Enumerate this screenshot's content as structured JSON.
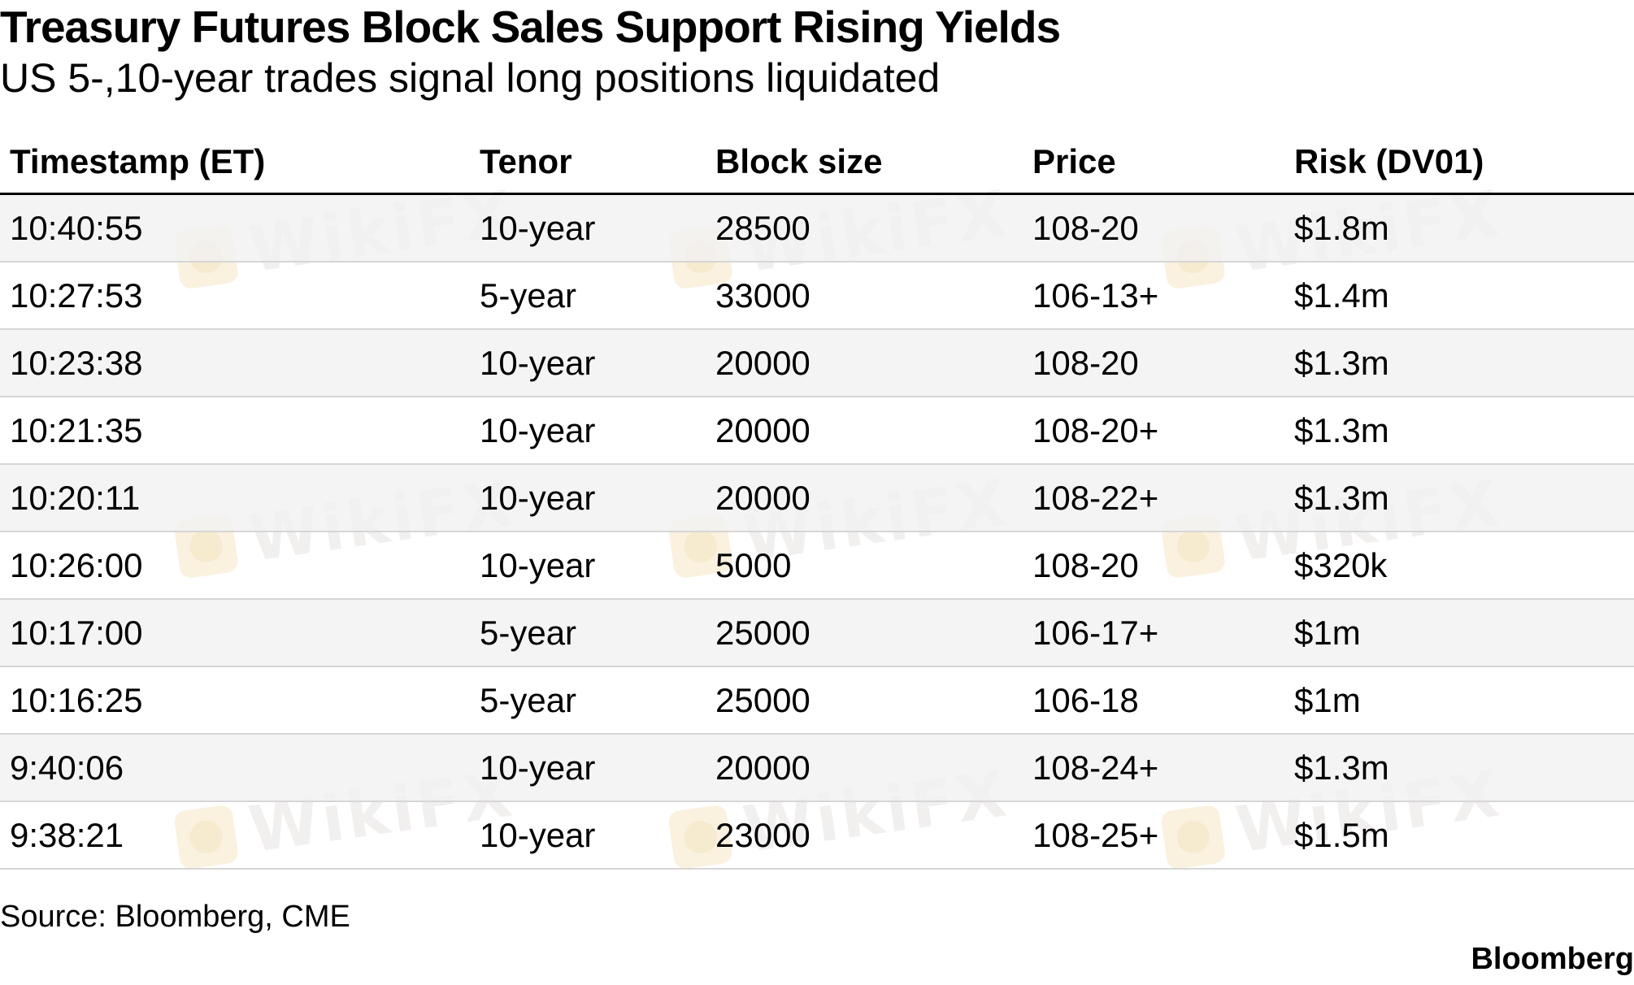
{
  "header": {
    "title": "Treasury Futures Block Sales Support Rising Yields",
    "subtitle": "US 5-,10-year trades signal long positions liquidated"
  },
  "watermark": {
    "text": "WikiFX",
    "icon": "wikifx-logo-icon"
  },
  "chart_data": {
    "type": "table",
    "title": "Treasury Futures Block Sales Support Rising Yields",
    "subtitle": "US 5-,10-year trades signal long positions liquidated",
    "columns": [
      "Timestamp (ET)",
      "Tenor",
      "Block size",
      "Price",
      "Risk (DV01)"
    ],
    "rows": [
      [
        "10:40:55",
        "10-year",
        "28500",
        "108-20",
        "$1.8m"
      ],
      [
        "10:27:53",
        "5-year",
        "33000",
        "106-13+",
        "$1.4m"
      ],
      [
        "10:23:38",
        "10-year",
        "20000",
        "108-20",
        "$1.3m"
      ],
      [
        "10:21:35",
        "10-year",
        "20000",
        "108-20+",
        "$1.3m"
      ],
      [
        "10:20:11",
        "10-year",
        "20000",
        "108-22+",
        "$1.3m"
      ],
      [
        "10:26:00",
        "10-year",
        "5000",
        "108-20",
        "$320k"
      ],
      [
        "10:17:00",
        "5-year",
        "25000",
        "106-17+",
        "$1m"
      ],
      [
        "10:16:25",
        "5-year",
        "25000",
        "106-18",
        "$1m"
      ],
      [
        "9:40:06",
        "10-year",
        "20000",
        "108-24+",
        "$1.3m"
      ],
      [
        "9:38:21",
        "10-year",
        "23000",
        "108-25+",
        "$1.5m"
      ]
    ],
    "row_shading": "alternating light gray"
  },
  "footer": {
    "source": "Source: Bloomberg, CME",
    "brand": "Bloomberg"
  },
  "colors": {
    "text": "#000000",
    "row_alt": "#f2f2f2",
    "row_divider": "#d6d6d6",
    "header_rule": "#000000",
    "watermark_text": "#e9e2e2",
    "watermark_logo": "#f6e7c6"
  }
}
